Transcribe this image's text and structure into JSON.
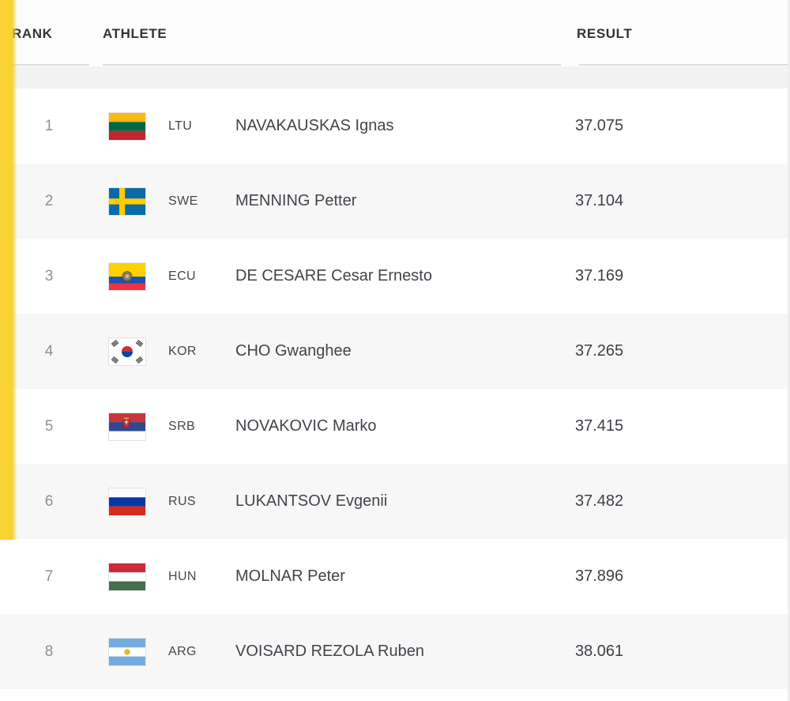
{
  "table": {
    "columns": {
      "rank": "RANK",
      "athlete": "ATHLETE",
      "result": "RESULT"
    },
    "rows": [
      {
        "rank": "1",
        "flag": "ltu",
        "country_code": "LTU",
        "name": "NAVAKAUSKAS Ignas",
        "result": "37.075"
      },
      {
        "rank": "2",
        "flag": "swe",
        "country_code": "SWE",
        "name": "MENNING Petter",
        "result": "37.104"
      },
      {
        "rank": "3",
        "flag": "ecu",
        "country_code": "ECU",
        "name": "DE CESARE Cesar Ernesto",
        "result": "37.169"
      },
      {
        "rank": "4",
        "flag": "kor",
        "country_code": "KOR",
        "name": "CHO Gwanghee",
        "result": "37.265"
      },
      {
        "rank": "5",
        "flag": "srb",
        "country_code": "SRB",
        "name": "NOVAKOVIC Marko",
        "result": "37.415"
      },
      {
        "rank": "6",
        "flag": "rus",
        "country_code": "RUS",
        "name": "LUKANTSOV Evgenii",
        "result": "37.482"
      },
      {
        "rank": "7",
        "flag": "hun",
        "country_code": "HUN",
        "name": "MOLNAR Peter",
        "result": "37.896"
      },
      {
        "rank": "8",
        "flag": "arg",
        "country_code": "ARG",
        "name": "VOISARD REZOLA Ruben",
        "result": "38.061"
      }
    ]
  },
  "colors": {
    "accent_yellow": "#f9d233",
    "row_alt": "#f7f7f8",
    "subheader_band": "#f2f2f2",
    "header_text": "#33333b",
    "underline": "#dcdcdc"
  }
}
